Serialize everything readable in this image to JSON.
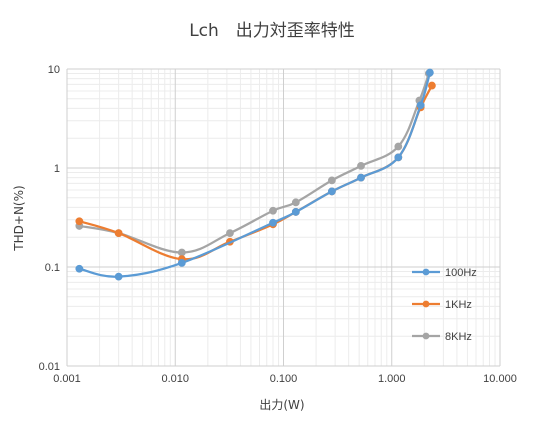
{
  "chart_data": {
    "type": "line",
    "title": "Lch　出力対歪率特性",
    "xlabel": "出力(W)",
    "ylabel": "THD+N(%)",
    "x_scale": "log",
    "y_scale": "log",
    "xlim": [
      0.001,
      10
    ],
    "ylim": [
      0.01,
      10
    ],
    "x_ticks": [
      "0.001",
      "0.010",
      "0.100",
      "1.000",
      "10.000"
    ],
    "y_ticks": [
      "0.01",
      "0.1",
      "1",
      "10"
    ],
    "grid": true,
    "legend_position": "right",
    "series": [
      {
        "name": "100Hz",
        "color": "#5B9BD5",
        "x": [
          0.0013,
          0.003,
          0.0115,
          0.08,
          0.13,
          0.28,
          0.52,
          1.15,
          1.85,
          2.25
        ],
        "y": [
          0.096,
          0.08,
          0.11,
          0.28,
          0.36,
          0.58,
          0.8,
          1.28,
          4.3,
          9.2
        ]
      },
      {
        "name": "1KHz",
        "color": "#ED7D31",
        "x": [
          0.0013,
          0.003,
          0.0115,
          0.032,
          0.08,
          0.13,
          0.28,
          0.52,
          1.15,
          1.85,
          2.35
        ],
        "y": [
          0.29,
          0.22,
          0.12,
          0.18,
          0.27,
          0.36,
          0.58,
          0.8,
          1.28,
          4.1,
          6.8
        ]
      },
      {
        "name": "8KHz",
        "color": "#A5A5A5",
        "x": [
          0.0013,
          0.003,
          0.0115,
          0.032,
          0.08,
          0.13,
          0.28,
          0.52,
          1.15,
          1.8,
          2.2
        ],
        "y": [
          0.26,
          0.22,
          0.14,
          0.22,
          0.37,
          0.45,
          0.75,
          1.05,
          1.65,
          4.8,
          9.0
        ]
      }
    ]
  }
}
